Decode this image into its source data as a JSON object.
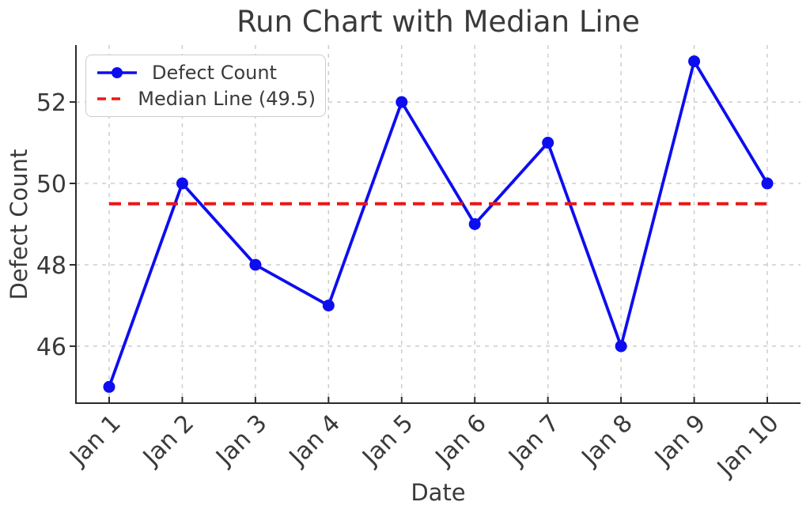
{
  "chart_data": {
    "type": "line",
    "title": "Run Chart with Median Line",
    "xlabel": "Date",
    "ylabel": "Defect Count",
    "categories": [
      "Jan 1",
      "Jan 2",
      "Jan 3",
      "Jan 4",
      "Jan 5",
      "Jan 6",
      "Jan 7",
      "Jan 8",
      "Jan 9",
      "Jan 10"
    ],
    "series": [
      {
        "name": "Defect Count",
        "values": [
          45,
          50,
          48,
          47,
          52,
          49,
          51,
          46,
          53,
          50
        ],
        "color": "#0d0df0",
        "style": "solid-marker"
      },
      {
        "name": "Median Line (49.5)",
        "constant": 49.5,
        "color": "#ee1515",
        "style": "dashed"
      }
    ],
    "median": 49.5,
    "yticks": [
      46,
      48,
      50,
      52
    ],
    "ylim": [
      44.6,
      53.4
    ],
    "grid": "dashed-both",
    "legend_position": "upper-left",
    "colors": {
      "line": "#0d0df0",
      "median": "#ee1515",
      "grid": "#cdcdcd",
      "text": "#3a3a3a",
      "spine": "#2b2b2b"
    }
  }
}
